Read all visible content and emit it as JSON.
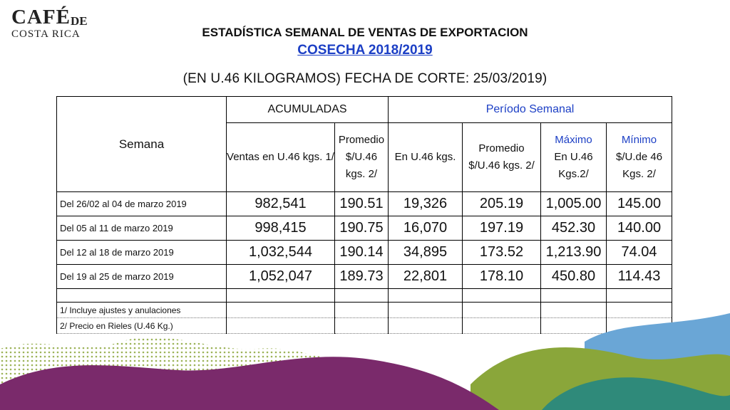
{
  "logo": {
    "cafe": "CAFÉ",
    "de": "DE",
    "costa_rica": "COSTA RICA"
  },
  "header": {
    "title": "ESTADÍSTICA SEMANAL DE VENTAS DE EXPORTACION",
    "subtitle": "COSECHA 2018/2019",
    "cutoff": "(EN U.46 KILOGRAMOS) FECHA DE CORTE: 25/03/2019)"
  },
  "table": {
    "semana_label": "Semana",
    "group_acumuladas": "ACUMULADAS",
    "group_periodo": "Período Semanal",
    "col_ventas": "Ventas en U.46 kgs. 1/",
    "col_promedio_acum": "Promedio $/U.46 kgs. 2/",
    "col_en_u46": "En U.46 kgs.",
    "col_promedio_sem": "Promedio $/U.46 kgs. 2/",
    "col_maximo": "Máximo",
    "col_maximo_sub": "En U.46 Kgs.2/",
    "col_minimo": "Mínimo",
    "col_minimo_sub": "$/U.de 46 Kgs. 2/",
    "rows": [
      {
        "semana": "Del 26/02  al 04 de marzo 2019",
        "ventas": "982,541",
        "prom_acum": "190.51",
        "en_u46": "19,326",
        "prom_sem": "205.19",
        "maximo": "1,005.00",
        "minimo": "145.00"
      },
      {
        "semana": "Del 05 al 11 de marzo 2019",
        "ventas": "998,415",
        "prom_acum": "190.75",
        "en_u46": "16,070",
        "prom_sem": "197.19",
        "maximo": "452.30",
        "minimo": "140.00"
      },
      {
        "semana": "Del 12 al 18 de marzo 2019",
        "ventas": "1,032,544",
        "prom_acum": "190.14",
        "en_u46": "34,895",
        "prom_sem": "173.52",
        "maximo": "1,213.90",
        "minimo": "74.04"
      },
      {
        "semana": "Del 19 al 25 de marzo 2019",
        "ventas": "1,052,047",
        "prom_acum": "189.73",
        "en_u46": "22,801",
        "prom_sem": "178.10",
        "maximo": "450.80",
        "minimo": "114.43"
      }
    ],
    "notes": [
      "1/ Incluye  ajustes y anulaciones",
      "2/ Precio en Rieles (U.46 Kg.)"
    ]
  },
  "colors": {
    "accent_blue": "#1c3fc5",
    "land_purple": "#7a2a6b",
    "land_green": "#8aa63a",
    "land_teal": "#2f8a7a",
    "land_blue": "#6aa6d6"
  }
}
